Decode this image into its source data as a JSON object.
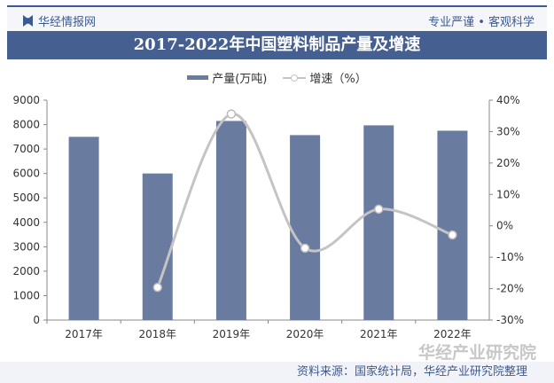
{
  "header": {
    "brand": "华经情报网",
    "slogan": "专业严谨 • 客观科学"
  },
  "source": "资料来源：国家统计局，华经产业研究院整理",
  "watermark": "华经产业研究院",
  "chart_data": {
    "type": "bar+line",
    "title": "2017-2022年中国塑料制品产量及增速",
    "categories": [
      "2017年",
      "2018年",
      "2019年",
      "2020年",
      "2021年",
      "2022年"
    ],
    "series": [
      {
        "name": "产量(万吨)",
        "type": "bar",
        "axis": "left",
        "color": "#6a7ba0",
        "values": [
          7500,
          6000,
          8150,
          7570,
          7970,
          7750
        ]
      },
      {
        "name": "增速（%）",
        "type": "line",
        "axis": "right",
        "color": "#c4c4c4",
        "values": [
          null,
          -19.6,
          35.6,
          -7.1,
          5.3,
          -2.9
        ]
      }
    ],
    "yleft": {
      "min": 0,
      "max": 9000,
      "ticks": [
        0,
        1000,
        2000,
        3000,
        4000,
        5000,
        6000,
        7000,
        8000,
        9000
      ]
    },
    "yright": {
      "min": -30,
      "max": 40,
      "ticks": [
        "-30%",
        "-20%",
        "-10%",
        "0%",
        "10%",
        "20%",
        "30%",
        "40%"
      ]
    },
    "legend": "top"
  }
}
